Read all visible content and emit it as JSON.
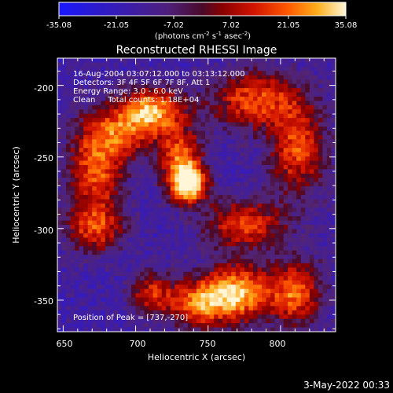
{
  "chart_data": {
    "type": "heatmap",
    "title": "Reconstructed RHESSI Image",
    "xlabel": "Heliocentric X (arcsec)",
    "ylabel": "Heliocentric Y (arcsec)",
    "xlim": [
      646,
      838
    ],
    "ylim": [
      -372,
      -181
    ],
    "x_ticks": [
      650,
      700,
      750,
      800
    ],
    "y_ticks": [
      -200,
      -250,
      -300,
      -350
    ],
    "colorbar": {
      "ticks": [
        "-35.08",
        "-21.05",
        "-7.02",
        "7.02",
        "21.05",
        "35.08"
      ],
      "range": [
        -35.08,
        35.08
      ],
      "units_label": "(photons cm",
      "units_sup1": "-2",
      "units_mid1": " s",
      "units_sup2": "-1",
      "units_mid2": " asec",
      "units_sup3": "-2",
      "units_end": ")"
    },
    "annotations": [
      "16-Aug-2004 03:07:12.000 to 03:13:12.000",
      "Detectors: 3F 4F 5F 6F 7F 8F, Att 1",
      "Energy Range: 3.0 - 6.0 keV",
      "Clean     Total counts: 1.18E+04"
    ],
    "peak_label": "Position of Peak = [737,-270]",
    "peak": [
      737,
      -270
    ],
    "sources": [
      {
        "x": 737,
        "y": -269,
        "amp": 35.0,
        "sx": 9,
        "sy": 9
      },
      {
        "x": 731,
        "y": -250,
        "amp": 20.0,
        "sx": 10,
        "sy": 16
      },
      {
        "x": 712,
        "y": -217,
        "amp": 24.0,
        "sx": 14,
        "sy": 11
      },
      {
        "x": 688,
        "y": -232,
        "amp": 16.0,
        "sx": 18,
        "sy": 14
      },
      {
        "x": 672,
        "y": -262,
        "amp": 17.0,
        "sx": 14,
        "sy": 20
      },
      {
        "x": 672,
        "y": -300,
        "amp": 14.0,
        "sx": 14,
        "sy": 12
      },
      {
        "x": 782,
        "y": -210,
        "amp": 18.0,
        "sx": 22,
        "sy": 14
      },
      {
        "x": 812,
        "y": -245,
        "amp": 17.0,
        "sx": 14,
        "sy": 22
      },
      {
        "x": 775,
        "y": -297,
        "amp": 16.0,
        "sx": 20,
        "sy": 12
      },
      {
        "x": 772,
        "y": -345,
        "amp": 28.0,
        "sx": 18,
        "sy": 14
      },
      {
        "x": 742,
        "y": -352,
        "amp": 18.0,
        "sx": 16,
        "sy": 12
      },
      {
        "x": 812,
        "y": -345,
        "amp": 18.0,
        "sx": 12,
        "sy": 16
      },
      {
        "x": 710,
        "y": -345,
        "amp": 10.0,
        "sx": 10,
        "sy": 10
      }
    ]
  },
  "footer": {
    "date": "3-May-2022 00:33"
  }
}
